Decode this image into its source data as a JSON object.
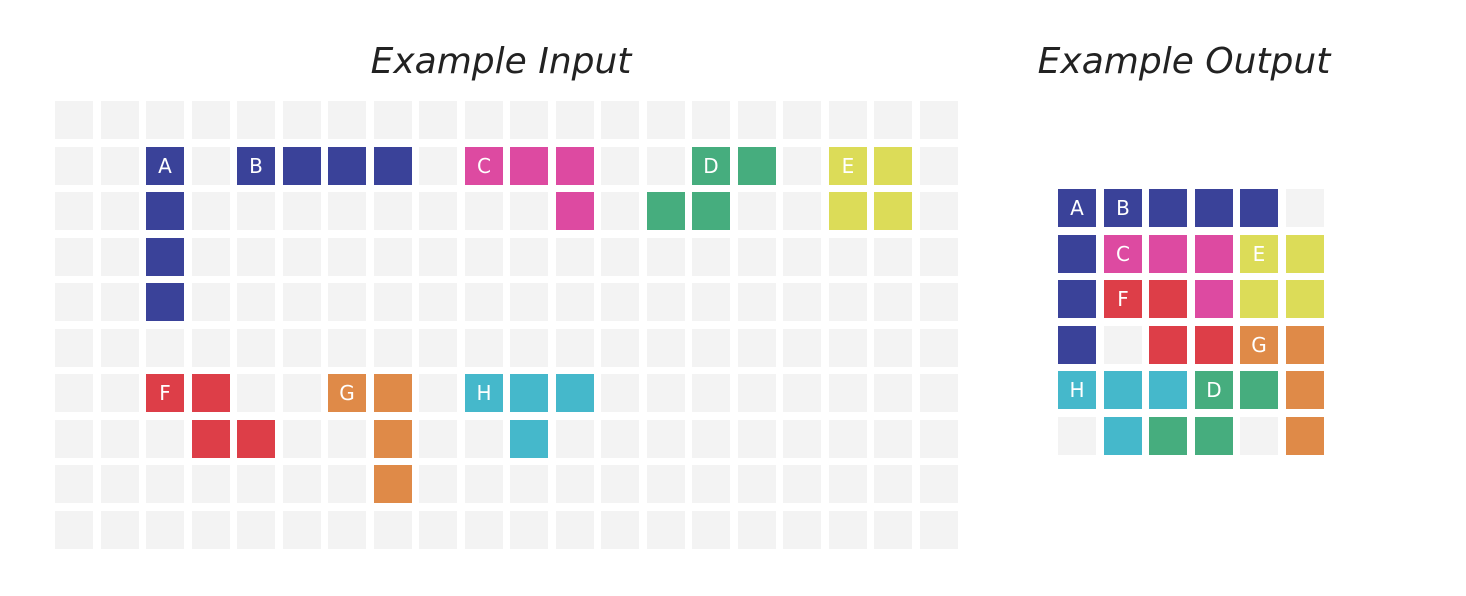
{
  "colors": {
    "empty": "#f3f3f3",
    "A": "#3a4299",
    "B": "#3a4299",
    "C": "#dd4aa1",
    "D": "#46ad7e",
    "E": "#dcdc58",
    "F": "#dd3e48",
    "G": "#df8a48",
    "H": "#45b8cb"
  },
  "input": {
    "title": "Example Input",
    "rows": 10,
    "cols": 20,
    "cells": [
      {
        "row": 1,
        "col": 2,
        "piece": "A",
        "label": "A"
      },
      {
        "row": 2,
        "col": 2,
        "piece": "A",
        "label": ""
      },
      {
        "row": 3,
        "col": 2,
        "piece": "A",
        "label": ""
      },
      {
        "row": 4,
        "col": 2,
        "piece": "A",
        "label": ""
      },
      {
        "row": 1,
        "col": 4,
        "piece": "B",
        "label": "B"
      },
      {
        "row": 1,
        "col": 5,
        "piece": "B",
        "label": ""
      },
      {
        "row": 1,
        "col": 6,
        "piece": "B",
        "label": ""
      },
      {
        "row": 1,
        "col": 7,
        "piece": "B",
        "label": ""
      },
      {
        "row": 1,
        "col": 9,
        "piece": "C",
        "label": "C"
      },
      {
        "row": 1,
        "col": 10,
        "piece": "C",
        "label": ""
      },
      {
        "row": 1,
        "col": 11,
        "piece": "C",
        "label": ""
      },
      {
        "row": 2,
        "col": 11,
        "piece": "C",
        "label": ""
      },
      {
        "row": 1,
        "col": 14,
        "piece": "D",
        "label": "D"
      },
      {
        "row": 1,
        "col": 15,
        "piece": "D",
        "label": ""
      },
      {
        "row": 2,
        "col": 13,
        "piece": "D",
        "label": ""
      },
      {
        "row": 2,
        "col": 14,
        "piece": "D",
        "label": ""
      },
      {
        "row": 1,
        "col": 17,
        "piece": "E",
        "label": "E"
      },
      {
        "row": 1,
        "col": 18,
        "piece": "E",
        "label": ""
      },
      {
        "row": 2,
        "col": 17,
        "piece": "E",
        "label": ""
      },
      {
        "row": 2,
        "col": 18,
        "piece": "E",
        "label": ""
      },
      {
        "row": 6,
        "col": 2,
        "piece": "F",
        "label": "F"
      },
      {
        "row": 6,
        "col": 3,
        "piece": "F",
        "label": ""
      },
      {
        "row": 7,
        "col": 3,
        "piece": "F",
        "label": ""
      },
      {
        "row": 7,
        "col": 4,
        "piece": "F",
        "label": ""
      },
      {
        "row": 6,
        "col": 6,
        "piece": "G",
        "label": "G"
      },
      {
        "row": 6,
        "col": 7,
        "piece": "G",
        "label": ""
      },
      {
        "row": 7,
        "col": 7,
        "piece": "G",
        "label": ""
      },
      {
        "row": 8,
        "col": 7,
        "piece": "G",
        "label": ""
      },
      {
        "row": 6,
        "col": 9,
        "piece": "H",
        "label": "H"
      },
      {
        "row": 6,
        "col": 10,
        "piece": "H",
        "label": ""
      },
      {
        "row": 6,
        "col": 11,
        "piece": "H",
        "label": ""
      },
      {
        "row": 7,
        "col": 10,
        "piece": "H",
        "label": ""
      }
    ]
  },
  "output": {
    "title": "Example Output",
    "rows": 6,
    "cols": 6,
    "cells": [
      {
        "row": 0,
        "col": 0,
        "piece": "A",
        "label": "A"
      },
      {
        "row": 0,
        "col": 1,
        "piece": "B",
        "label": "B"
      },
      {
        "row": 0,
        "col": 2,
        "piece": "B",
        "label": ""
      },
      {
        "row": 0,
        "col": 3,
        "piece": "B",
        "label": ""
      },
      {
        "row": 0,
        "col": 4,
        "piece": "B",
        "label": ""
      },
      {
        "row": 1,
        "col": 0,
        "piece": "A",
        "label": ""
      },
      {
        "row": 1,
        "col": 1,
        "piece": "C",
        "label": "C"
      },
      {
        "row": 1,
        "col": 2,
        "piece": "C",
        "label": ""
      },
      {
        "row": 1,
        "col": 3,
        "piece": "C",
        "label": ""
      },
      {
        "row": 1,
        "col": 4,
        "piece": "E",
        "label": "E"
      },
      {
        "row": 1,
        "col": 5,
        "piece": "E",
        "label": ""
      },
      {
        "row": 2,
        "col": 0,
        "piece": "A",
        "label": ""
      },
      {
        "row": 2,
        "col": 1,
        "piece": "F",
        "label": "F"
      },
      {
        "row": 2,
        "col": 2,
        "piece": "F",
        "label": ""
      },
      {
        "row": 2,
        "col": 3,
        "piece": "C",
        "label": ""
      },
      {
        "row": 2,
        "col": 4,
        "piece": "E",
        "label": ""
      },
      {
        "row": 2,
        "col": 5,
        "piece": "E",
        "label": ""
      },
      {
        "row": 3,
        "col": 0,
        "piece": "A",
        "label": ""
      },
      {
        "row": 3,
        "col": 2,
        "piece": "F",
        "label": ""
      },
      {
        "row": 3,
        "col": 3,
        "piece": "F",
        "label": ""
      },
      {
        "row": 3,
        "col": 4,
        "piece": "G",
        "label": "G"
      },
      {
        "row": 3,
        "col": 5,
        "piece": "G",
        "label": ""
      },
      {
        "row": 4,
        "col": 0,
        "piece": "H",
        "label": "H"
      },
      {
        "row": 4,
        "col": 1,
        "piece": "H",
        "label": ""
      },
      {
        "row": 4,
        "col": 2,
        "piece": "H",
        "label": ""
      },
      {
        "row": 4,
        "col": 3,
        "piece": "D",
        "label": "D"
      },
      {
        "row": 4,
        "col": 4,
        "piece": "D",
        "label": ""
      },
      {
        "row": 4,
        "col": 5,
        "piece": "G",
        "label": ""
      },
      {
        "row": 5,
        "col": 1,
        "piece": "H",
        "label": ""
      },
      {
        "row": 5,
        "col": 2,
        "piece": "D",
        "label": ""
      },
      {
        "row": 5,
        "col": 3,
        "piece": "D",
        "label": ""
      },
      {
        "row": 5,
        "col": 5,
        "piece": "G",
        "label": ""
      }
    ]
  }
}
